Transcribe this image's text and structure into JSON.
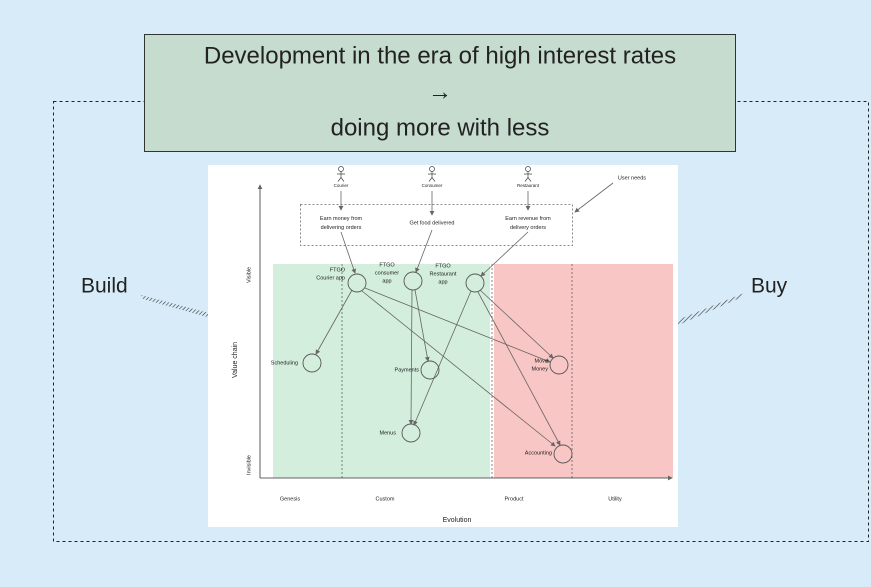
{
  "title": {
    "lines": [
      "Development in the era of high interest rates",
      "→",
      "doing more with less"
    ]
  },
  "side_labels": {
    "left": "Build",
    "right": "Buy"
  },
  "map": {
    "users": [
      "Courier",
      "Consumer",
      "Restaurant"
    ],
    "needs": [
      [
        "Earn money from",
        "delivering orders"
      ],
      [
        "Get food delivered"
      ],
      [
        "Earn revenue from",
        "delivery orders"
      ]
    ],
    "user_needs_label": "User needs",
    "components": [
      [
        "FTGO",
        "Courier app"
      ],
      [
        "FTGO",
        "consumer",
        "app"
      ],
      [
        "FTGO",
        "Restaurant",
        "app"
      ],
      [
        "Scheduling"
      ],
      [
        "Payments"
      ],
      [
        "Menus"
      ],
      [
        "Move",
        "Money"
      ],
      [
        "Accounting"
      ]
    ],
    "y_axis": {
      "title": "Value chain",
      "top": "Visible",
      "bottom": "Invisible"
    },
    "x_axis": {
      "title": "Evolution",
      "stages": [
        "Genesis",
        "Custom",
        "Product",
        "Utility"
      ]
    }
  }
}
